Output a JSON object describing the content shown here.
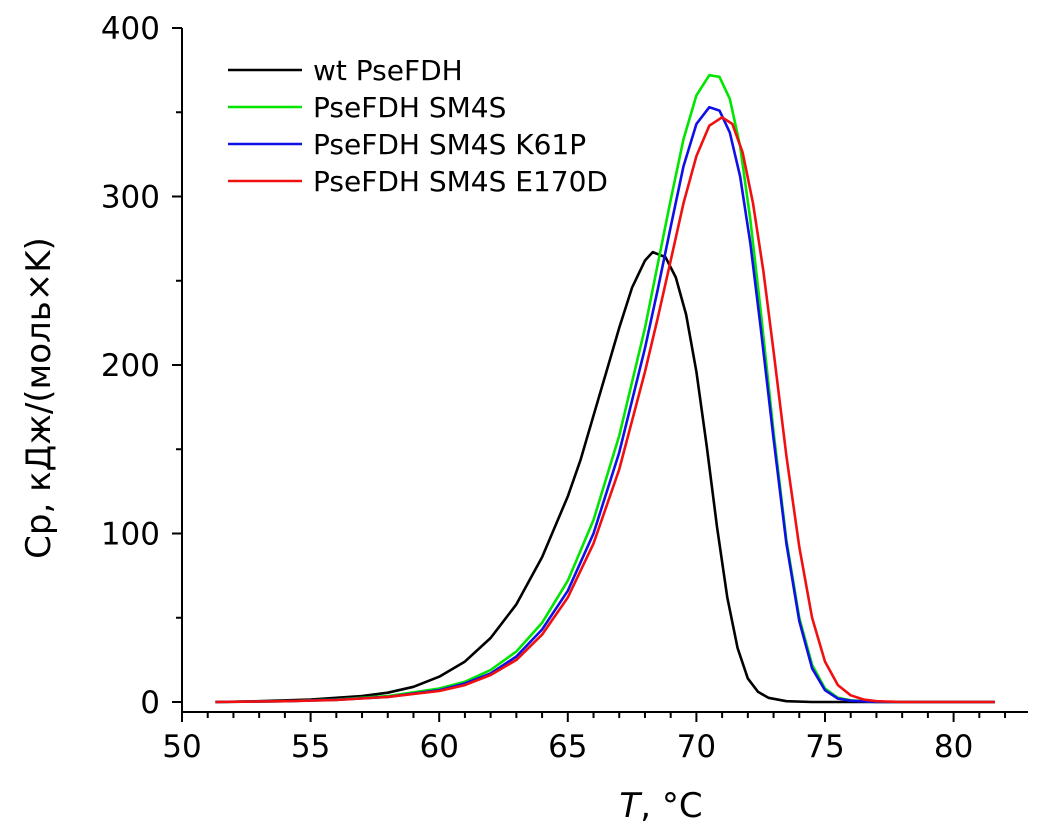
{
  "chart_data": {
    "type": "line",
    "xlabel": "T, °C",
    "ylabel": "Cp, кДж/(моль×K)",
    "xlim": [
      50,
      83
    ],
    "ylim": [
      0,
      400
    ],
    "xticks": [
      50,
      55,
      60,
      65,
      70,
      75,
      80
    ],
    "yticks": [
      0,
      100,
      200,
      300,
      400
    ],
    "grid": false,
    "legend_position": "top-left",
    "series": [
      {
        "name": "wt PseFDH",
        "color": "#000000",
        "x": [
          51.3,
          53,
          55,
          57,
          58,
          59,
          60,
          61,
          62,
          63,
          64,
          65,
          65.5,
          66,
          66.5,
          67,
          67.5,
          68,
          68.3,
          68.8,
          69.2,
          69.6,
          70,
          70.4,
          70.8,
          71.2,
          71.6,
          72,
          72.4,
          72.8,
          73.5,
          74.5,
          76,
          78,
          81.6
        ],
        "y": [
          0,
          0.5,
          1.5,
          3.5,
          5.5,
          9,
          15,
          24,
          38,
          58,
          86,
          122,
          144,
          170,
          196,
          222,
          246,
          262,
          267,
          264,
          252,
          230,
          196,
          152,
          104,
          62,
          32,
          14,
          6,
          2.5,
          0.5,
          0,
          0,
          0,
          0
        ]
      },
      {
        "name": "PseFDH SM4S",
        "color": "#00e600",
        "x": [
          51.3,
          54,
          56,
          58,
          60,
          61,
          62,
          63,
          64,
          65,
          66,
          67,
          68,
          68.5,
          69,
          69.5,
          70,
          70.5,
          70.9,
          71.3,
          71.7,
          72.1,
          72.5,
          73,
          73.5,
          74,
          74.5,
          75,
          75.5,
          76,
          77,
          79,
          81.6
        ],
        "y": [
          0,
          0.5,
          1.5,
          3.5,
          8,
          12,
          19,
          30,
          47,
          72,
          108,
          158,
          222,
          260,
          298,
          334,
          360,
          372,
          371,
          358,
          330,
          286,
          232,
          160,
          96,
          50,
          22,
          8,
          2.5,
          1,
          0,
          0,
          0
        ]
      },
      {
        "name": "PseFDH SM4S K61P",
        "color": "#1010e6",
        "x": [
          51.3,
          54,
          56,
          58,
          60,
          61,
          62,
          63,
          64,
          65,
          66,
          67,
          68,
          68.5,
          69,
          69.5,
          70,
          70.5,
          70.9,
          71.3,
          71.7,
          72.1,
          72.5,
          73,
          73.5,
          74,
          74.5,
          75,
          75.5,
          76,
          77,
          79,
          81.6
        ],
        "y": [
          0,
          0.5,
          1.3,
          3,
          7,
          11,
          17,
          27,
          43,
          66,
          100,
          148,
          210,
          245,
          282,
          318,
          343,
          353,
          351,
          338,
          312,
          272,
          222,
          156,
          94,
          48,
          20,
          7,
          2,
          0.8,
          0,
          0,
          0
        ]
      },
      {
        "name": "PseFDH SM4S E170D",
        "color": "#f01010",
        "x": [
          51.3,
          54,
          56,
          58,
          60,
          61,
          62,
          63,
          64,
          65,
          66,
          67,
          68,
          68.5,
          69,
          69.5,
          70,
          70.5,
          71,
          71.4,
          71.8,
          72.2,
          72.6,
          73,
          73.5,
          74,
          74.5,
          75,
          75.5,
          76,
          76.5,
          77,
          78,
          81.6
        ],
        "y": [
          0,
          0.5,
          1.2,
          3,
          6.5,
          10,
          16,
          25,
          40,
          62,
          94,
          138,
          196,
          228,
          262,
          296,
          324,
          342,
          347,
          343,
          326,
          296,
          256,
          208,
          146,
          92,
          50,
          24,
          10,
          4,
          1.5,
          0.5,
          0,
          0
        ]
      }
    ]
  }
}
